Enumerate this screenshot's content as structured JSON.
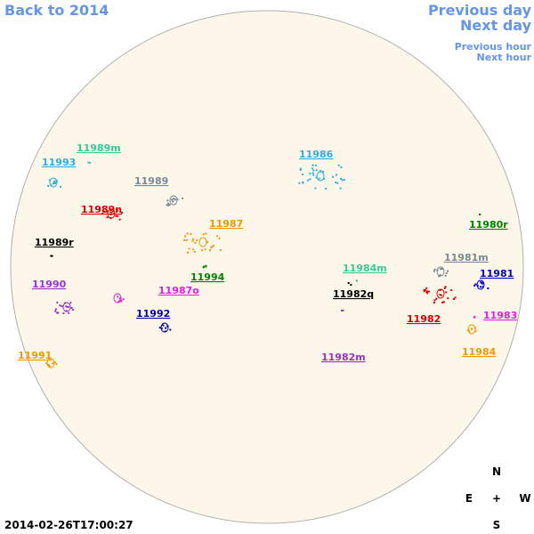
{
  "nav": {
    "back_year": "Back to 2014",
    "previous_day": "Previous day",
    "next_day": "Next day",
    "previous_hour": "Previous hour",
    "next_hour": "Next hour"
  },
  "regions": [
    {
      "label": "11989m",
      "color": "#33cc99"
    },
    {
      "label": "11993",
      "color": "#29aee8"
    },
    {
      "label": "11989",
      "color": "#778899"
    },
    {
      "label": "11989n",
      "color": "#dd0000"
    },
    {
      "label": "11987",
      "color": "#ee9900"
    },
    {
      "label": "11989r",
      "color": "#000000"
    },
    {
      "label": "11990",
      "color": "#9932cc"
    },
    {
      "label": "11994",
      "color": "#008000"
    },
    {
      "label": "11987o",
      "color": "#e020e0"
    },
    {
      "label": "11992",
      "color": "#0000aa"
    },
    {
      "label": "11991",
      "color": "#ee9900"
    },
    {
      "label": "11986",
      "color": "#29aee8"
    },
    {
      "label": "11980r",
      "color": "#008000"
    },
    {
      "label": "11981m",
      "color": "#778899"
    },
    {
      "label": "11984m",
      "color": "#33cc99"
    },
    {
      "label": "11981",
      "color": "#0000cc"
    },
    {
      "label": "11982q",
      "color": "#000000"
    },
    {
      "label": "11982",
      "color": "#dd0000"
    },
    {
      "label": "11983",
      "color": "#e020e0"
    },
    {
      "label": "11984",
      "color": "#ee9900"
    },
    {
      "label": "11982m",
      "color": "#9932cc"
    }
  ],
  "compass": {
    "north": "N",
    "east": "E",
    "center": "+",
    "west": "W",
    "south": "S"
  },
  "timestamp": "2014-02-26T17:00:27"
}
